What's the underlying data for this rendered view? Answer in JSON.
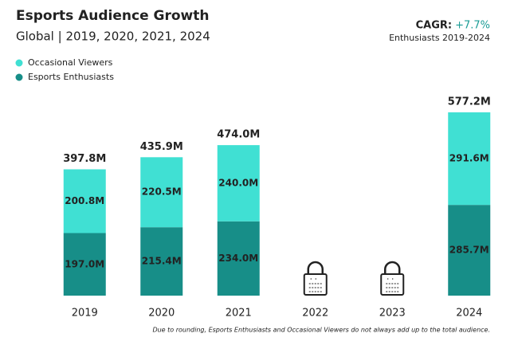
{
  "chart_data": {
    "type": "stacked_bar",
    "title": "Esports Audience Growth",
    "subtitle": "Global | 2019, 2020, 2021, 2024",
    "annotation": {
      "label": "CAGR:",
      "value_label": "+7.7%",
      "note": "Enthusiasts 2019-2024"
    },
    "footnote": "Due to rounding, Esports Enthusiasts and Occasional Viewers do not always add up to the total audience.",
    "categories": [
      "2019",
      "2020",
      "2021",
      "2022",
      "2023",
      "2024"
    ],
    "series": [
      {
        "name": "Occasional Viewers",
        "color": "#40e0d3",
        "values": [
          200.8,
          220.5,
          240.0,
          null,
          null,
          291.6
        ],
        "value_labels": [
          "200.8M",
          "220.5M",
          "240.0M",
          null,
          null,
          "291.6M"
        ]
      },
      {
        "name": "Esports Enthusiasts",
        "color": "#178e88",
        "values": [
          197.0,
          215.4,
          234.0,
          null,
          null,
          285.7
        ],
        "value_labels": [
          "197.0M",
          "215.4M",
          "234.0M",
          null,
          null,
          "285.7M"
        ]
      }
    ],
    "totals": {
      "values": [
        397.8,
        435.9,
        474.0,
        null,
        null,
        577.2
      ],
      "value_labels": [
        "397.8M",
        "435.9M",
        "474.0M",
        null,
        null,
        "577.2M"
      ]
    }
  }
}
